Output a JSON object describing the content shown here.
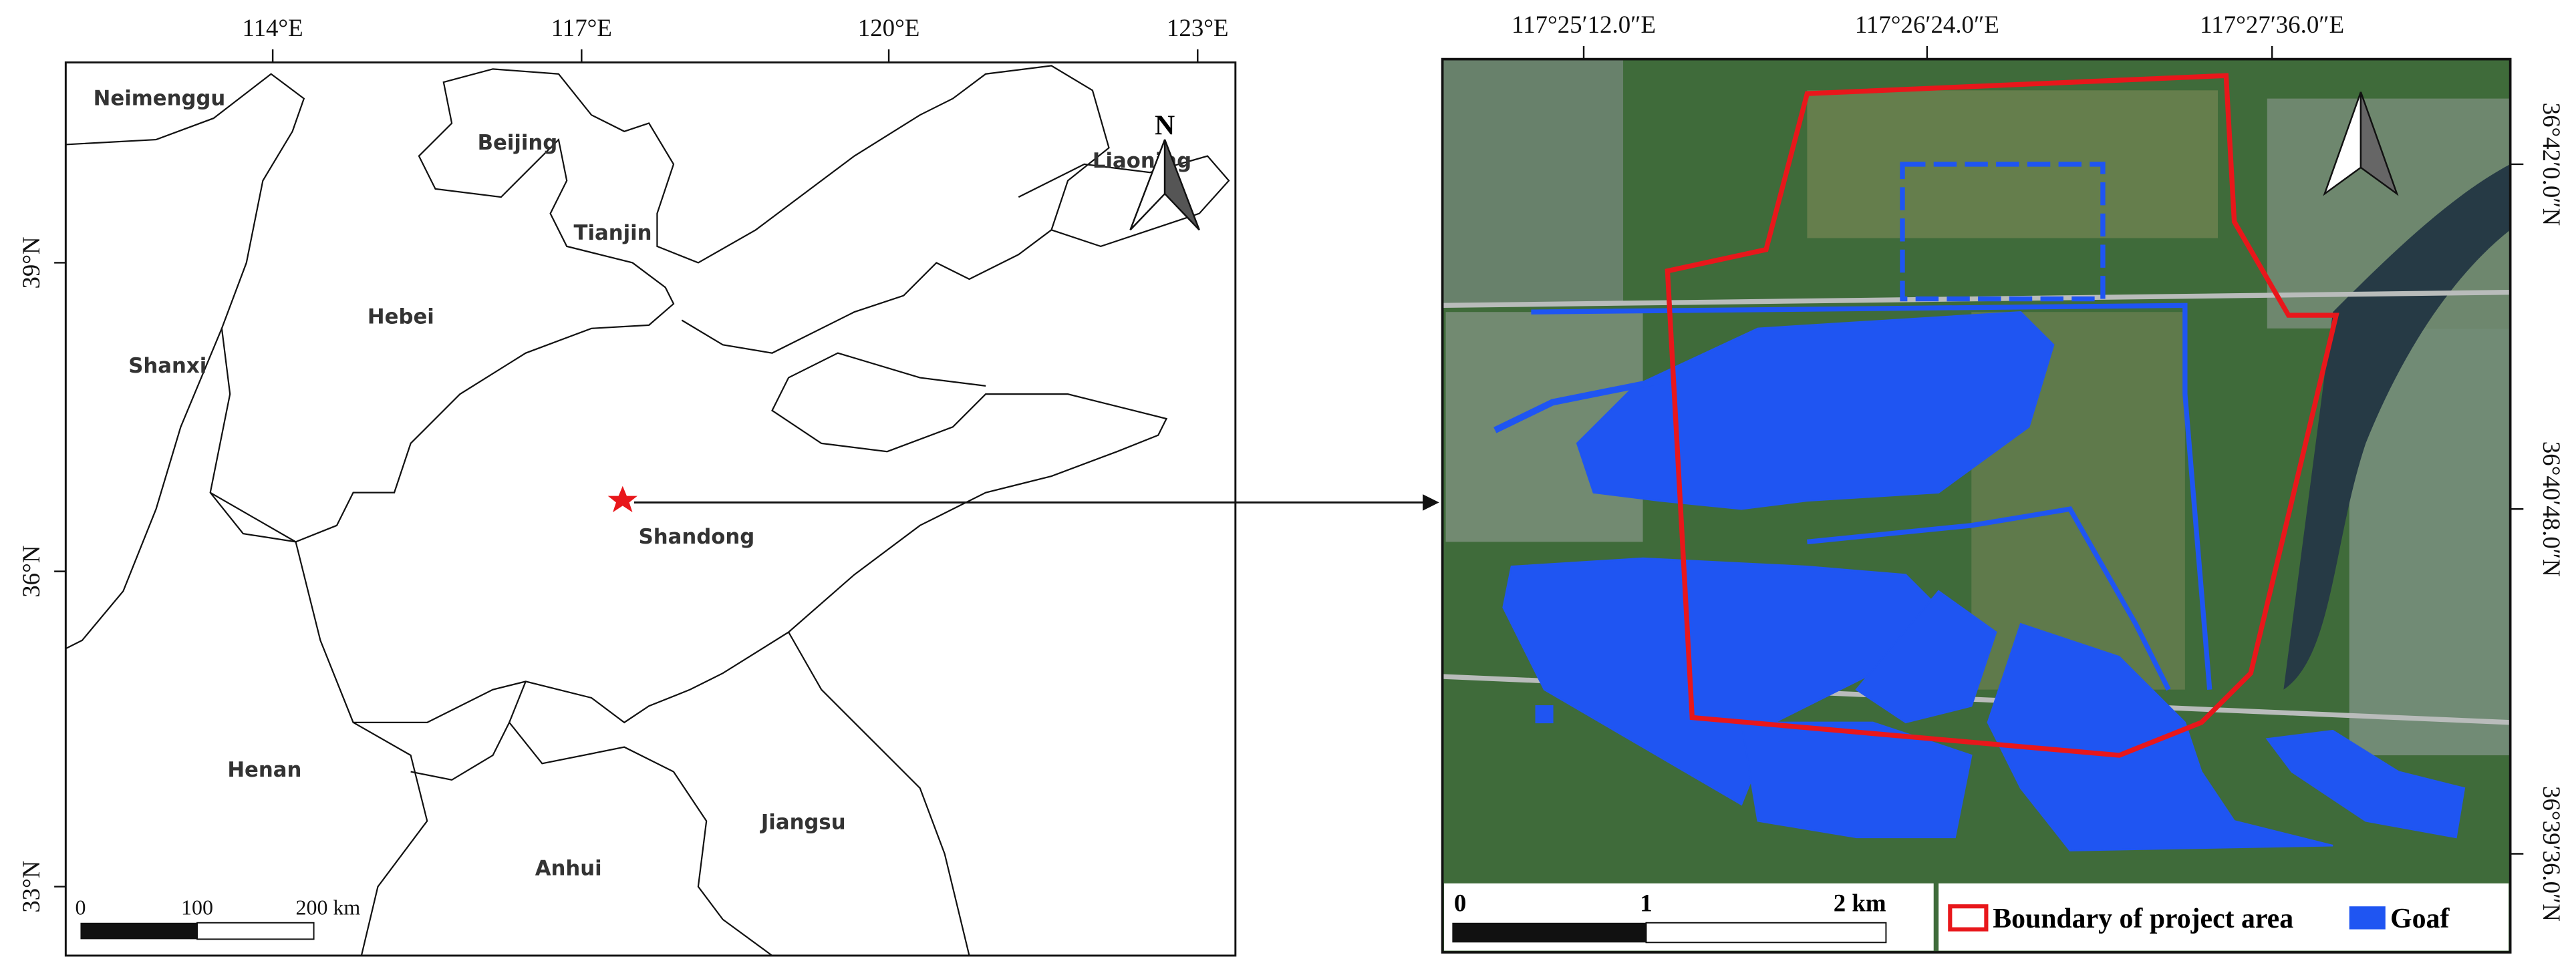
{
  "left_map": {
    "lon_ticks": [
      "114°E",
      "117°E",
      "120°E",
      "123°E"
    ],
    "lat_ticks": [
      "39°N",
      "36°N",
      "33°N"
    ],
    "regions": [
      "Neimenggu",
      "Beijing",
      "Tianjin",
      "Hebei",
      "Shanxi",
      "Shandong",
      "Henan",
      "Jiangsu",
      "Anhui",
      "Liaoning"
    ],
    "north": "N",
    "scale": [
      "0",
      "100",
      "200 km"
    ]
  },
  "right_map": {
    "lon_ticks": [
      "117°25′12.0″E",
      "117°26′24.0″E",
      "117°27′36.0″E"
    ],
    "lat_ticks": [
      "36°42′0.0″N",
      "36°40′48.0″N",
      "36°39′36.0″N"
    ],
    "scale": [
      "0",
      "1",
      "2 km"
    ],
    "legend": [
      "Boundary of project area",
      "Goaf"
    ]
  }
}
